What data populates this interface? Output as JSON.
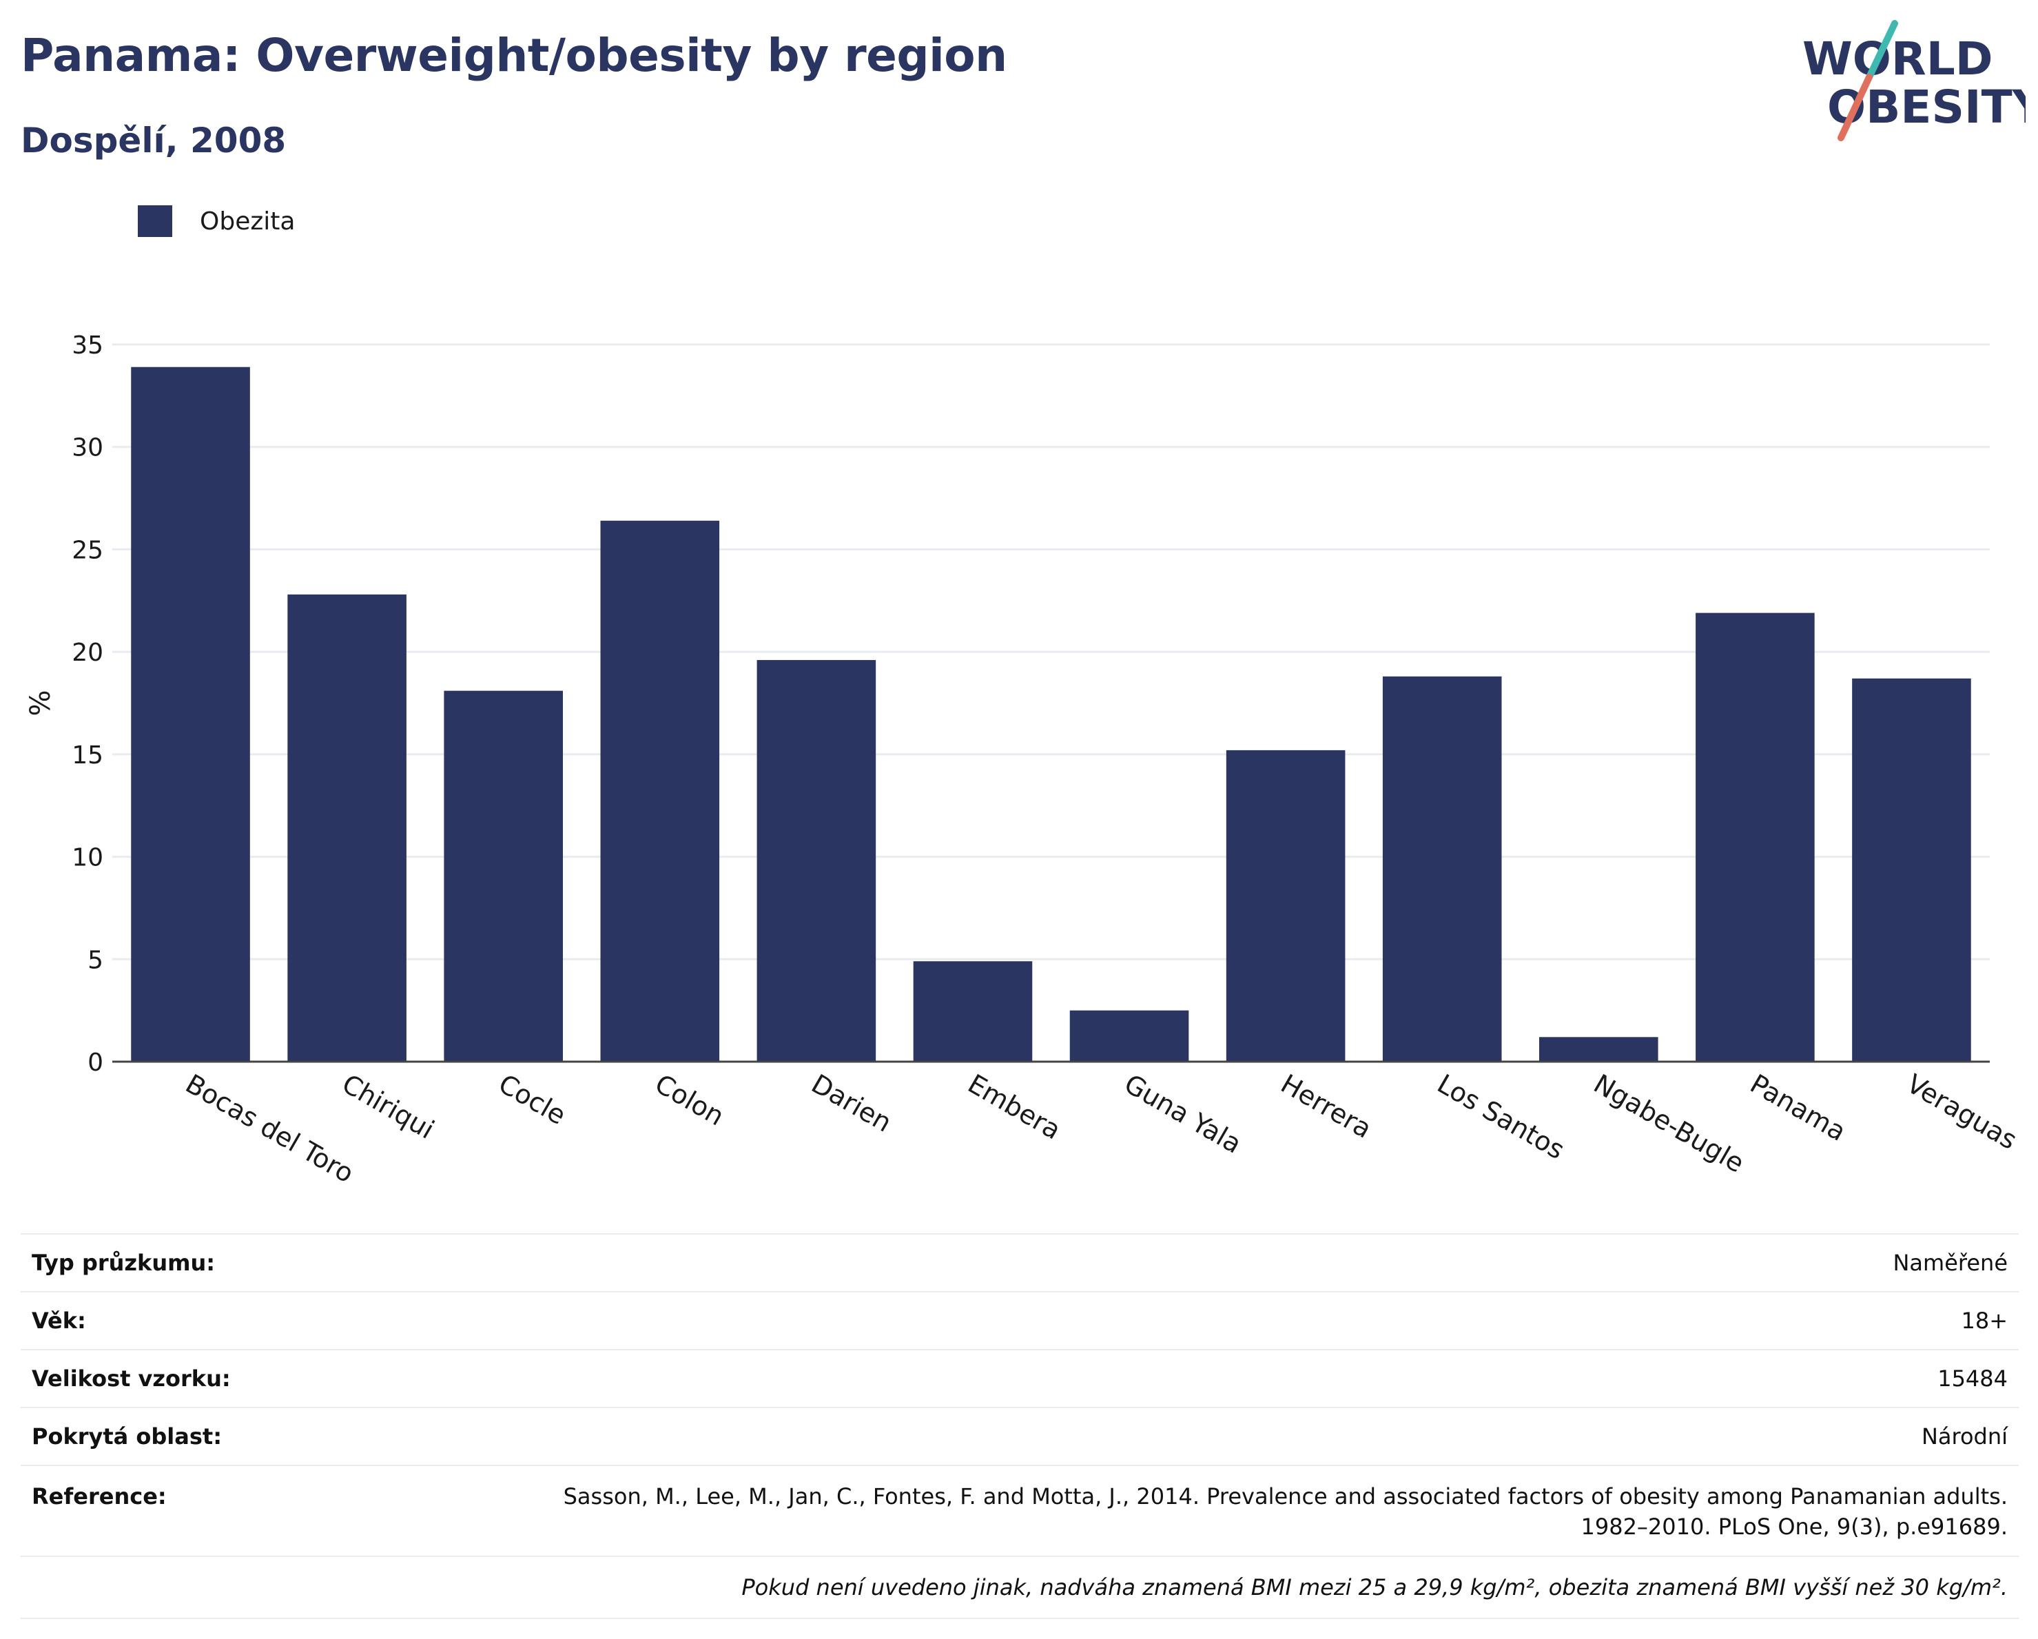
{
  "header": {
    "title": "Panama: Overweight/obesity by region",
    "subtitle": "Dospělí, 2008"
  },
  "logo": {
    "line1": "WORLD",
    "line2": "OBESITY",
    "colors": {
      "text": "#2b3561",
      "slash_top": "#3fb8b0",
      "slash_bottom": "#e0705e"
    }
  },
  "legend": {
    "label": "Obezita",
    "color": "#2b3561"
  },
  "chart_data": {
    "type": "bar",
    "categories": [
      "Bocas del Toro",
      "Chiriqui",
      "Cocle",
      "Colon",
      "Darien",
      "Embera",
      "Guna Yala",
      "Herrera",
      "Los Santos",
      "Ngabe-Bugle",
      "Panama",
      "Veraguas"
    ],
    "series": [
      {
        "name": "Obezita",
        "color": "#2b3561",
        "values": [
          33.9,
          22.8,
          18.1,
          26.4,
          19.6,
          4.9,
          2.5,
          15.2,
          18.8,
          1.2,
          21.9,
          18.7
        ]
      }
    ],
    "ylabel": "%",
    "ylim": [
      0,
      35
    ],
    "yticks": [
      0,
      5,
      10,
      15,
      20,
      25,
      30,
      35
    ],
    "grid": true,
    "legend_position": "top-left"
  },
  "info": {
    "rows": [
      {
        "label": "Typ průzkumu:",
        "value": "Naměřené"
      },
      {
        "label": "Věk:",
        "value": "18+"
      },
      {
        "label": "Velikost vzorku:",
        "value": "15484"
      },
      {
        "label": "Pokrytá oblast:",
        "value": "Národní"
      }
    ],
    "reference": {
      "label": "Reference:",
      "line1": "Sasson, M., Lee, M., Jan, C., Fontes, F. and Motta, J., 2014. Prevalence and associated factors of obesity among Panamanian adults.",
      "line2": "1982–2010. PLoS One, 9(3), p.e91689."
    },
    "note": "Pokud není uvedeno jinak, nadváha znamená BMI mezi 25 a 29,9 kg/m², obezita znamená BMI vyšší než 30 kg/m²."
  }
}
